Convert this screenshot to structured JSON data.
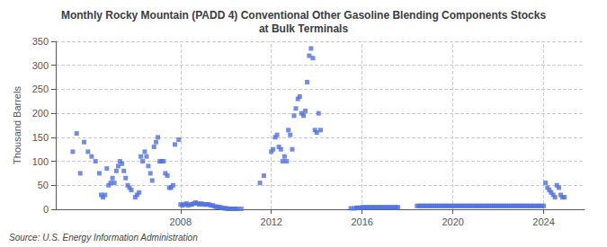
{
  "chart_data": {
    "type": "scatter",
    "title": "Monthly Rocky Mountain (PADD 4) Conventional Other Gasoline Blending Components Stocks\nat Bulk Terminals",
    "ylabel": "Thousand Barrels",
    "source": "Source: U.S. Energy Information Administration",
    "marker": "square",
    "grid": true,
    "xlim": [
      2002.5,
      2025.8
    ],
    "xticks": [
      2008,
      2012,
      2016,
      2020,
      2024
    ],
    "ylim": [
      0,
      350
    ],
    "yticks": [
      0,
      50,
      100,
      150,
      200,
      250,
      300,
      350
    ],
    "x": [
      2003.25,
      2003.42,
      2003.58,
      2003.75,
      2003.92,
      2004.08,
      2004.25,
      2004.42,
      2004.5,
      2004.58,
      2004.67,
      2004.75,
      2004.83,
      2004.92,
      2005.0,
      2005.08,
      2005.17,
      2005.25,
      2005.33,
      2005.42,
      2005.5,
      2005.58,
      2005.67,
      2005.75,
      2005.83,
      2006.0,
      2006.08,
      2006.17,
      2006.25,
      2006.33,
      2006.42,
      2006.5,
      2006.58,
      2006.67,
      2006.75,
      2006.83,
      2006.92,
      2007.0,
      2007.08,
      2007.17,
      2007.25,
      2007.33,
      2007.42,
      2007.5,
      2007.58,
      2007.67,
      2007.75,
      2007.92,
      2008.0,
      2008.08,
      2008.17,
      2008.25,
      2008.33,
      2008.42,
      2008.5,
      2008.58,
      2008.67,
      2008.75,
      2008.83,
      2008.92,
      2009.0,
      2009.08,
      2009.17,
      2009.25,
      2009.33,
      2009.42,
      2009.5,
      2009.58,
      2009.67,
      2009.75,
      2009.83,
      2009.92,
      2010.0,
      2010.08,
      2010.17,
      2010.25,
      2010.33,
      2010.42,
      2010.5,
      2010.67,
      2011.5,
      2011.67,
      2012.0,
      2012.08,
      2012.17,
      2012.25,
      2012.33,
      2012.42,
      2012.5,
      2012.58,
      2012.67,
      2012.75,
      2012.83,
      2012.92,
      2013.0,
      2013.08,
      2013.17,
      2013.25,
      2013.33,
      2013.42,
      2013.5,
      2013.58,
      2013.67,
      2013.75,
      2013.83,
      2013.92,
      2014.0,
      2014.08,
      2014.17,
      2015.5,
      2015.67,
      2015.75,
      2015.83,
      2015.92,
      2016.0,
      2016.08,
      2016.17,
      2016.25,
      2016.33,
      2016.42,
      2016.5,
      2016.58,
      2016.67,
      2016.75,
      2016.83,
      2016.92,
      2017.0,
      2017.08,
      2017.17,
      2017.25,
      2017.33,
      2017.42,
      2017.5,
      2017.58,
      2018.42,
      2018.5,
      2018.58,
      2018.67,
      2018.75,
      2018.83,
      2018.92,
      2019.0,
      2019.08,
      2019.17,
      2019.25,
      2019.33,
      2019.42,
      2019.5,
      2019.58,
      2019.67,
      2019.75,
      2019.83,
      2019.92,
      2020.0,
      2020.08,
      2020.17,
      2020.25,
      2020.33,
      2020.42,
      2020.5,
      2020.58,
      2020.67,
      2020.75,
      2020.83,
      2020.92,
      2021.0,
      2021.08,
      2021.17,
      2021.25,
      2021.33,
      2021.42,
      2021.5,
      2021.58,
      2021.67,
      2021.75,
      2021.83,
      2021.92,
      2022.0,
      2022.08,
      2022.17,
      2022.25,
      2022.33,
      2022.42,
      2022.5,
      2022.58,
      2022.67,
      2022.75,
      2022.83,
      2022.92,
      2023.0,
      2023.08,
      2023.17,
      2023.25,
      2023.33,
      2023.42,
      2023.5,
      2023.58,
      2023.67,
      2023.75,
      2023.83,
      2023.92,
      2024.0,
      2024.08,
      2024.17,
      2024.25,
      2024.33,
      2024.42,
      2024.5,
      2024.58,
      2024.67,
      2024.75,
      2024.83,
      2024.92
    ],
    "values": [
      120,
      158,
      75,
      140,
      120,
      110,
      100,
      75,
      30,
      25,
      30,
      85,
      50,
      55,
      65,
      55,
      80,
      90,
      100,
      95,
      80,
      65,
      50,
      45,
      40,
      25,
      30,
      35,
      110,
      100,
      120,
      110,
      90,
      75,
      60,
      130,
      140,
      150,
      100,
      100,
      100,
      75,
      70,
      45,
      45,
      50,
      135,
      145,
      10,
      8,
      10,
      12,
      8,
      10,
      10,
      12,
      14,
      12,
      10,
      12,
      10,
      10,
      10,
      10,
      8,
      8,
      6,
      5,
      5,
      4,
      3,
      2,
      2,
      1,
      1,
      1,
      1,
      1,
      1,
      1,
      55,
      70,
      120,
      125,
      150,
      155,
      130,
      125,
      100,
      110,
      100,
      165,
      155,
      125,
      195,
      210,
      230,
      235,
      200,
      195,
      205,
      265,
      320,
      335,
      315,
      165,
      160,
      200,
      165,
      2,
      2,
      3,
      3,
      3,
      4,
      4,
      4,
      4,
      4,
      4,
      4,
      4,
      4,
      4,
      4,
      4,
      4,
      4,
      4,
      4,
      4,
      4,
      4,
      4,
      7,
      7,
      7,
      7,
      7,
      7,
      7,
      7,
      7,
      7,
      7,
      7,
      7,
      7,
      7,
      7,
      7,
      7,
      7,
      7,
      7,
      7,
      7,
      7,
      7,
      7,
      7,
      7,
      7,
      7,
      7,
      7,
      7,
      7,
      7,
      7,
      7,
      7,
      7,
      7,
      7,
      7,
      7,
      7,
      7,
      7,
      7,
      7,
      7,
      7,
      7,
      7,
      7,
      7,
      7,
      7,
      7,
      7,
      7,
      7,
      7,
      7,
      7,
      7,
      7,
      7,
      7,
      7,
      55,
      45,
      40,
      35,
      30,
      25,
      50,
      45,
      30,
      25,
      25
    ]
  }
}
